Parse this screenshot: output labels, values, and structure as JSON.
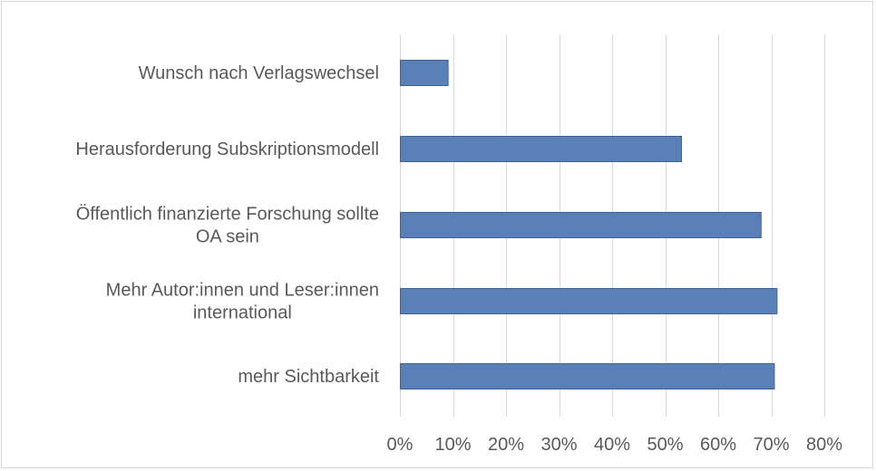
{
  "chart_data": {
    "type": "bar",
    "orientation": "horizontal",
    "categories": [
      "Wunsch nach Verlagswechsel",
      "Herausforderung Subskriptionsmodell",
      "Öffentlich finanzierte Forschung sollte OA sein",
      "Mehr Autor:innen und Leser:innen international",
      "mehr Sichtbarkeit"
    ],
    "category_label_lines": [
      [
        "Wunsch nach Verlagswechsel"
      ],
      [
        "Herausforderung Subskriptionsmodell"
      ],
      [
        "Öffentlich finanzierte Forschung sollte",
        "OA sein"
      ],
      [
        "Mehr Autor:innen und Leser:innen",
        "international"
      ],
      [
        "mehr Sichtbarkeit"
      ]
    ],
    "values": [
      9,
      53,
      68,
      71,
      70.5
    ],
    "xlim": [
      0,
      80
    ],
    "xticks": [
      0,
      10,
      20,
      30,
      40,
      50,
      60,
      70,
      80
    ],
    "xtick_labels": [
      "0%",
      "10%",
      "20%",
      "30%",
      "40%",
      "50%",
      "60%",
      "70%",
      "80%"
    ],
    "title": "",
    "xlabel": "",
    "ylabel": "",
    "grid": "vertical",
    "legend": "none",
    "colors": {
      "bar_fill": "#5b80b8",
      "bar_stroke": "#3e6397",
      "grid": "#d9d9d9",
      "text": "#595959",
      "border": "#d9d9d9"
    }
  }
}
